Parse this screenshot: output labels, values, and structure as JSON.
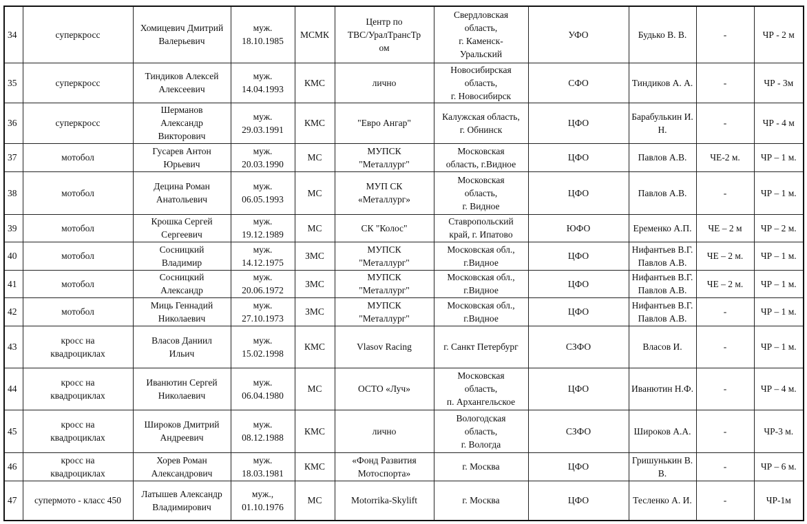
{
  "rows": [
    [
      "34",
      "суперкросс",
      "Хомицевич Дмитрий\nВалерьевич",
      "муж.\n18.10.1985",
      "МСМК",
      "Центр по\nТВС/УралТрансТр\nом",
      "Свердловская\nобласть,\nг. Каменск-\nУральский",
      "УФО",
      "Будько В. В.",
      "-",
      "ЧР - 2 м"
    ],
    [
      "35",
      "суперкросс",
      "Тиндиков Алексей\nАлексеевич",
      "муж.\n14.04.1993",
      "КМС",
      "лично",
      "Новосибирская\nобласть,\nг. Новосибирск",
      "СФО",
      "Тиндиков А. А.",
      "-",
      "ЧР - 3м"
    ],
    [
      "36",
      "суперкросс",
      "Шерманов\nАлександр\nВикторович",
      "муж.\n29.03.1991",
      "КМС",
      "\"Евро Ангар\"",
      "Калужская область,\nг. Обнинск",
      "ЦФО",
      "Барабулькин И. Н.",
      "-",
      "ЧР - 4 м"
    ],
    [
      "37",
      "мотобол",
      "Гусарев Антон\nЮрьевич",
      "муж.\n20.03.1990",
      "МС",
      "МУПСК\n\"Металлург\"",
      "Московская\nобласть, г.Видное",
      "ЦФО",
      "Павлов А.В.",
      "ЧЕ-2 м.",
      "ЧР – 1 м."
    ],
    [
      "38",
      "мотобол",
      "Децина Роман\nАнатольевич",
      "муж.\n06.05.1993",
      "МС",
      "МУП СК\n«Металлург»",
      "Московская\nобласть,\nг. Видное",
      "ЦФО",
      "Павлов А.В.",
      "-",
      "ЧР – 1 м."
    ],
    [
      "39",
      "мотобол",
      "Крошка Сергей\nСергеевич",
      "муж.\n19.12.1989",
      "МС",
      "СК \"Колос\"",
      "Ставропольский\nкрай, г. Ипатово",
      "ЮФО",
      "Еременко А.П.",
      "ЧЕ – 2 м",
      "ЧР – 2 м."
    ],
    [
      "40",
      "мотобол",
      "Сосницкий\nВладимир",
      "муж.\n14.12.1975",
      "ЗМС",
      "МУПСК\n\"Металлург\"",
      "Московская обл.,\nг.Видное",
      "ЦФО",
      "Нифантьев В.Г.\nПавлов А.В.",
      "ЧЕ – 2 м.",
      "ЧР – 1 м."
    ],
    [
      "41",
      "мотобол",
      "Сосницкий\nАлександр",
      "муж.\n20.06.1972",
      "ЗМС",
      "МУПСК\n\"Металлург\"",
      "Московская обл.,\nг.Видное",
      "ЦФО",
      "Нифантьев В.Г.\nПавлов А.В.",
      "ЧЕ – 2 м.",
      "ЧР – 1 м."
    ],
    [
      "42",
      "мотобол",
      "Миць Геннадий\nНиколаевич",
      "муж.\n27.10.1973",
      "ЗМС",
      "МУПСК\n\"Металлург\"",
      "Московская обл.,\nг.Видное",
      "ЦФО",
      "Нифантьев В.Г.\nПавлов А.В.",
      "-",
      "ЧР – 1 м."
    ],
    [
      "43",
      "кросс на\nквадроциклах",
      "Власов Даниил\nИльич",
      "муж.\n15.02.1998",
      "КМС",
      "Vlasov Racing",
      "г. Санкт Петербург",
      "СЗФО",
      "Власов И.",
      "-",
      "ЧР – 1 м."
    ],
    [
      "44",
      "кросс на\nквадроциклах",
      "Иванютин Сергей\nНиколаевич",
      "муж.\n06.04.1980",
      "МС",
      "ОСТО «Луч»",
      "Московская\nобласть,\nп. Архангельское",
      "ЦФО",
      "Иванютин Н.Ф.",
      "-",
      "ЧР – 4 м."
    ],
    [
      "45",
      "кросс на\nквадроциклах",
      "Широков Дмитрий\nАндреевич",
      "муж.\n08.12.1988",
      "КМС",
      "лично",
      "Вологодская\nобласть,\nг. Вологда",
      "СЗФО",
      "Широков А.А.",
      "-",
      "ЧР-3 м."
    ],
    [
      "46",
      "кросс на\nквадроциклах",
      "Хорев Роман\nАлександрович",
      "муж.\n18.03.1981",
      "КМС",
      "«Фонд Развития\nМотоспорта»",
      "г. Москва",
      "ЦФО",
      "Гришунькин В. В.",
      "-",
      "ЧР  – 6 м."
    ],
    [
      "47",
      "супермото - класс 450",
      "Латышев Александр\nВладимирович",
      "муж.,\n01.10.1976",
      "МС",
      "Motorrika-Skylift",
      "г. Москва",
      "ЦФО",
      "Тесленко А. И.",
      "-",
      "ЧР-1м"
    ]
  ]
}
